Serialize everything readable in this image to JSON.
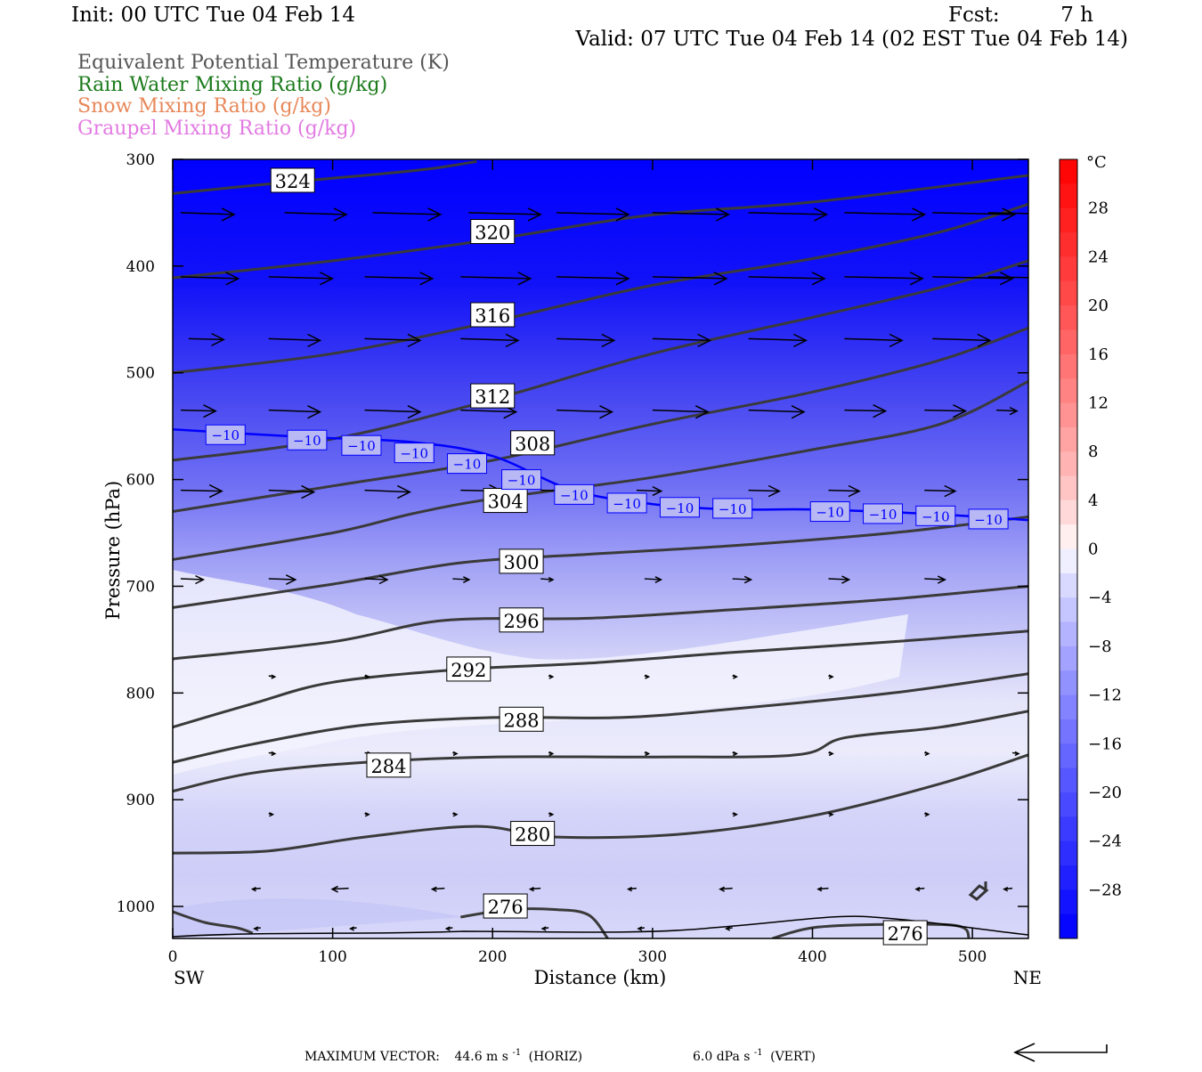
{
  "header": {
    "init": "Init: 00 UTC Tue 04 Feb 14",
    "fcst_label": "Fcst:",
    "fcst_value": "7 h",
    "valid": "Valid: 07 UTC Tue 04 Feb 14 (02 EST Tue 04 Feb 14)"
  },
  "fields": [
    {
      "label": "Equivalent Potential Temperature (K)",
      "color": "#555555"
    },
    {
      "label": "Rain Water Mixing Ratio (g/kg)",
      "color": "#1a7a1a"
    },
    {
      "label": "Snow Mixing Ratio (g/kg)",
      "color": "#e8885a"
    },
    {
      "label": "Graupel Mixing Ratio (g/kg)",
      "color": "#e27ae2"
    }
  ],
  "chart_data": {
    "type": "contour",
    "xlabel": "Distance (km)",
    "ylabel": "Pressure (hPa)",
    "xlim": [
      0,
      535
    ],
    "ylim": [
      1030,
      300
    ],
    "y_scale": "linear, inverted",
    "x_ticks": [
      "0",
      "100",
      "200",
      "300",
      "400",
      "500"
    ],
    "y_ticks": [
      "300",
      "400",
      "500",
      "600",
      "700",
      "800",
      "900",
      "1000"
    ],
    "x_left_label": "SW",
    "x_right_label": "NE",
    "theta_e_contours": [
      {
        "level": "324",
        "points": [
          [
            0,
            332
          ],
          [
            60,
            323
          ],
          [
            120,
            315
          ],
          [
            160,
            309
          ],
          [
            190,
            302
          ]
        ],
        "label_at": [
          75,
          320
        ]
      },
      {
        "level": "320",
        "points": [
          [
            0,
            411
          ],
          [
            100,
            395
          ],
          [
            200,
            375
          ],
          [
            300,
            352
          ],
          [
            400,
            340
          ],
          [
            535,
            315
          ]
        ],
        "label_at": [
          200,
          368
        ]
      },
      {
        "level": "316",
        "points": [
          [
            0,
            500
          ],
          [
            100,
            482
          ],
          [
            200,
            452
          ],
          [
            300,
            418
          ],
          [
            400,
            393
          ],
          [
            480,
            368
          ],
          [
            535,
            342
          ]
        ],
        "label_at": [
          200,
          446
        ]
      },
      {
        "level": "312",
        "points": [
          [
            0,
            582
          ],
          [
            100,
            562
          ],
          [
            200,
            525
          ],
          [
            300,
            482
          ],
          [
            400,
            448
          ],
          [
            480,
            420
          ],
          [
            535,
            395
          ]
        ],
        "label_at": [
          200,
          522
        ]
      },
      {
        "level": "308",
        "points": [
          [
            0,
            630
          ],
          [
            100,
            606
          ],
          [
            200,
            582
          ],
          [
            300,
            548
          ],
          [
            400,
            518
          ],
          [
            480,
            488
          ],
          [
            535,
            458
          ]
        ],
        "label_at": [
          225,
          566
        ]
      },
      {
        "level": "304",
        "points": [
          [
            0,
            675
          ],
          [
            100,
            650
          ],
          [
            150,
            632
          ],
          [
            200,
            618
          ],
          [
            300,
            598
          ],
          [
            400,
            572
          ],
          [
            480,
            548
          ],
          [
            535,
            508
          ]
        ],
        "label_at": [
          208,
          620
        ]
      },
      {
        "level": "300",
        "points": [
          [
            0,
            720
          ],
          [
            100,
            698
          ],
          [
            180,
            678
          ],
          [
            260,
            670
          ],
          [
            350,
            662
          ],
          [
            450,
            650
          ],
          [
            535,
            635
          ]
        ],
        "label_at": [
          218,
          677
        ]
      },
      {
        "level": "296",
        "points": [
          [
            0,
            768
          ],
          [
            100,
            752
          ],
          [
            170,
            732
          ],
          [
            260,
            730
          ],
          [
            350,
            722
          ],
          [
            450,
            712
          ],
          [
            535,
            700
          ]
        ],
        "label_at": [
          218,
          732
        ]
      },
      {
        "level": "292",
        "points": [
          [
            0,
            832
          ],
          [
            50,
            810
          ],
          [
            100,
            790
          ],
          [
            180,
            778
          ],
          [
            260,
            772
          ],
          [
            350,
            762
          ],
          [
            450,
            752
          ],
          [
            535,
            742
          ]
        ],
        "label_at": [
          185,
          778
        ]
      },
      {
        "level": "288",
        "points": [
          [
            0,
            865
          ],
          [
            50,
            848
          ],
          [
            120,
            830
          ],
          [
            200,
            823
          ],
          [
            280,
            823
          ],
          [
            350,
            815
          ],
          [
            450,
            800
          ],
          [
            535,
            782
          ]
        ],
        "label_at": [
          218,
          825
        ]
      },
      {
        "level": "284",
        "points": [
          [
            0,
            892
          ],
          [
            50,
            875
          ],
          [
            120,
            865
          ],
          [
            200,
            860
          ],
          [
            300,
            860
          ],
          [
            390,
            858
          ],
          [
            420,
            842
          ],
          [
            480,
            832
          ],
          [
            535,
            817
          ]
        ],
        "label_at": [
          135,
          868
        ]
      },
      {
        "level": "280",
        "points": [
          [
            0,
            950
          ],
          [
            60,
            948
          ],
          [
            120,
            935
          ],
          [
            190,
            925
          ],
          [
            240,
            935
          ],
          [
            320,
            932
          ],
          [
            400,
            915
          ],
          [
            480,
            885
          ],
          [
            535,
            858
          ]
        ],
        "label_at": [
          225,
          932
        ]
      },
      {
        "level": "276",
        "points": [
          [
            180,
            1010
          ],
          [
            210,
            1003
          ],
          [
            240,
            1003
          ],
          [
            260,
            1008
          ],
          [
            272,
            1030
          ]
        ],
        "label_at": [
          208,
          1000
        ]
      },
      {
        "level": "276",
        "points": [
          [
            375,
            1030
          ],
          [
            400,
            1020
          ],
          [
            440,
            1017
          ],
          [
            490,
            1018
          ],
          [
            498,
            1030
          ]
        ],
        "label_at": [
          458,
          1025
        ]
      },
      {
        "level": "",
        "points": [
          [
            0,
            1005
          ],
          [
            20,
            1015
          ],
          [
            40,
            1020
          ],
          [
            50,
            1025
          ]
        ],
        "label_at": null
      }
    ],
    "temperature_contour": {
      "level": "-10",
      "color": "#0000ff",
      "points": [
        [
          0,
          553
        ],
        [
          80,
          560
        ],
        [
          150,
          565
        ],
        [
          200,
          578
        ],
        [
          250,
          610
        ],
        [
          300,
          623
        ],
        [
          350,
          628
        ],
        [
          400,
          628
        ],
        [
          470,
          632
        ],
        [
          535,
          638
        ]
      ],
      "labels": [
        [
          33,
          558
        ],
        [
          84,
          563
        ],
        [
          118,
          568
        ],
        [
          151,
          575
        ],
        [
          184,
          585
        ],
        [
          218,
          600
        ],
        [
          251,
          614
        ],
        [
          284,
          622
        ],
        [
          317,
          626
        ],
        [
          350,
          627
        ],
        [
          411,
          630
        ],
        [
          444,
          632
        ],
        [
          477,
          634
        ],
        [
          510,
          637
        ]
      ]
    },
    "wind_vectors": [
      {
        "x": 5,
        "p": 350,
        "u": 26,
        "w": 0
      },
      {
        "x": 70,
        "p": 350,
        "u": 30,
        "w": 0
      },
      {
        "x": 125,
        "p": 350,
        "u": 33,
        "w": 0
      },
      {
        "x": 185,
        "p": 350,
        "u": 35,
        "w": 0
      },
      {
        "x": 240,
        "p": 350,
        "u": 35,
        "w": 0
      },
      {
        "x": 300,
        "p": 350,
        "u": 37,
        "w": 0
      },
      {
        "x": 360,
        "p": 350,
        "u": 38,
        "w": 0
      },
      {
        "x": 420,
        "p": 350,
        "u": 39,
        "w": 0
      },
      {
        "x": 475,
        "p": 350,
        "u": 40,
        "w": 0
      },
      {
        "x": 510,
        "p": 350,
        "u": 40,
        "w": 0
      },
      {
        "x": 5,
        "p": 410,
        "u": 28,
        "w": 0
      },
      {
        "x": 60,
        "p": 410,
        "u": 31,
        "w": 0
      },
      {
        "x": 120,
        "p": 410,
        "u": 33,
        "w": 0
      },
      {
        "x": 180,
        "p": 410,
        "u": 34,
        "w": 0
      },
      {
        "x": 240,
        "p": 410,
        "u": 35,
        "w": 0
      },
      {
        "x": 300,
        "p": 410,
        "u": 36,
        "w": 0
      },
      {
        "x": 360,
        "p": 410,
        "u": 37,
        "w": 0
      },
      {
        "x": 420,
        "p": 410,
        "u": 38,
        "w": 0
      },
      {
        "x": 475,
        "p": 410,
        "u": 39,
        "w": 0
      },
      {
        "x": 510,
        "p": 410,
        "u": 40,
        "w": 0
      },
      {
        "x": 10,
        "p": 468,
        "u": 17,
        "w": 0
      },
      {
        "x": 60,
        "p": 468,
        "u": 25,
        "w": 0
      },
      {
        "x": 120,
        "p": 468,
        "u": 27,
        "w": 0
      },
      {
        "x": 180,
        "p": 468,
        "u": 28,
        "w": 0
      },
      {
        "x": 240,
        "p": 468,
        "u": 28,
        "w": 0
      },
      {
        "x": 300,
        "p": 468,
        "u": 28,
        "w": 0
      },
      {
        "x": 360,
        "p": 468,
        "u": 28,
        "w": 0
      },
      {
        "x": 420,
        "p": 468,
        "u": 28,
        "w": 0
      },
      {
        "x": 475,
        "p": 468,
        "u": 28,
        "w": 0
      },
      {
        "x": 5,
        "p": 535,
        "u": 17,
        "w": 0
      },
      {
        "x": 60,
        "p": 535,
        "u": 25,
        "w": 0
      },
      {
        "x": 120,
        "p": 535,
        "u": 27,
        "w": 0
      },
      {
        "x": 180,
        "p": 535,
        "u": 27,
        "w": 0
      },
      {
        "x": 240,
        "p": 535,
        "u": 27,
        "w": 0
      },
      {
        "x": 300,
        "p": 535,
        "u": 27,
        "w": 0
      },
      {
        "x": 360,
        "p": 535,
        "u": 27,
        "w": 0
      },
      {
        "x": 420,
        "p": 535,
        "u": 20,
        "w": 0
      },
      {
        "x": 470,
        "p": 535,
        "u": 20,
        "w": 0
      },
      {
        "x": 515,
        "p": 535,
        "u": 10,
        "w": 0
      },
      {
        "x": 5,
        "p": 610,
        "u": 20,
        "w": 0
      },
      {
        "x": 60,
        "p": 610,
        "u": 22,
        "w": 0
      },
      {
        "x": 120,
        "p": 610,
        "u": 22,
        "w": 0
      },
      {
        "x": 180,
        "p": 610,
        "u": 20,
        "w": 0
      },
      {
        "x": 230,
        "p": 610,
        "u": 15,
        "w": 0
      },
      {
        "x": 290,
        "p": 610,
        "u": 12,
        "w": 0
      },
      {
        "x": 360,
        "p": 610,
        "u": 15,
        "w": 0
      },
      {
        "x": 410,
        "p": 610,
        "u": 15,
        "w": 0
      },
      {
        "x": 470,
        "p": 610,
        "u": 15,
        "w": 0
      },
      {
        "x": 5,
        "p": 693,
        "u": 11,
        "w": 0
      },
      {
        "x": 60,
        "p": 693,
        "u": 13,
        "w": 0
      },
      {
        "x": 120,
        "p": 693,
        "u": 11,
        "w": 0
      },
      {
        "x": 175,
        "p": 693,
        "u": 8,
        "w": 0
      },
      {
        "x": 230,
        "p": 693,
        "u": 6,
        "w": 0
      },
      {
        "x": 295,
        "p": 693,
        "u": 8,
        "w": 0
      },
      {
        "x": 350,
        "p": 693,
        "u": 9,
        "w": 0
      },
      {
        "x": 410,
        "p": 693,
        "u": 10,
        "w": 0
      },
      {
        "x": 470,
        "p": 693,
        "u": 10,
        "w": 0
      },
      {
        "x": 60,
        "p": 784,
        "u": 3,
        "w": 0
      },
      {
        "x": 120,
        "p": 784,
        "u": 2,
        "w": 0
      },
      {
        "x": 175,
        "p": 784,
        "u": 3,
        "w": 0
      },
      {
        "x": 235,
        "p": 784,
        "u": 2,
        "w": 0
      },
      {
        "x": 295,
        "p": 784,
        "u": 2,
        "w": 0
      },
      {
        "x": 350,
        "p": 784,
        "u": 2,
        "w": 0
      },
      {
        "x": 410,
        "p": 784,
        "u": 2,
        "w": 0
      },
      {
        "x": 60,
        "p": 856,
        "u": 3,
        "w": 0
      },
      {
        "x": 120,
        "p": 856,
        "u": 3,
        "w": 0
      },
      {
        "x": 175,
        "p": 856,
        "u": 2,
        "w": 0
      },
      {
        "x": 235,
        "p": 856,
        "u": 2,
        "w": 0
      },
      {
        "x": 295,
        "p": 856,
        "u": 2,
        "w": 0
      },
      {
        "x": 350,
        "p": 856,
        "u": 2,
        "w": 0
      },
      {
        "x": 410,
        "p": 856,
        "u": 2,
        "w": 0
      },
      {
        "x": 470,
        "p": 856,
        "u": 2,
        "w": 0
      },
      {
        "x": 525,
        "p": 856,
        "u": 3,
        "w": 0
      },
      {
        "x": 60,
        "p": 913,
        "u": 2,
        "w": 0
      },
      {
        "x": 120,
        "p": 913,
        "u": 2,
        "w": 0
      },
      {
        "x": 175,
        "p": 913,
        "u": 2,
        "w": 0
      },
      {
        "x": 235,
        "p": 913,
        "u": 2,
        "w": 0
      },
      {
        "x": 350,
        "p": 913,
        "u": 2,
        "w": 0
      },
      {
        "x": 410,
        "p": 913,
        "u": 2,
        "w": 0
      },
      {
        "x": 470,
        "p": 913,
        "u": 2,
        "w": 0
      },
      {
        "x": 55,
        "p": 983,
        "u": -4,
        "w": 0
      },
      {
        "x": 110,
        "p": 983,
        "u": -8,
        "w": 0
      },
      {
        "x": 170,
        "p": 983,
        "u": -6,
        "w": 0
      },
      {
        "x": 230,
        "p": 983,
        "u": -5,
        "w": 0
      },
      {
        "x": 290,
        "p": 983,
        "u": -4,
        "w": 0
      },
      {
        "x": 350,
        "p": 983,
        "u": -6,
        "w": 0
      },
      {
        "x": 410,
        "p": 983,
        "u": -5,
        "w": 0
      },
      {
        "x": 470,
        "p": 983,
        "u": -4,
        "w": 0
      },
      {
        "x": 525,
        "p": 983,
        "u": -4,
        "w": 0
      },
      {
        "x": 55,
        "p": 1020,
        "u": -3,
        "w": 0
      },
      {
        "x": 115,
        "p": 1020,
        "u": -3,
        "w": 0
      },
      {
        "x": 175,
        "p": 1020,
        "u": -3,
        "w": 0
      },
      {
        "x": 235,
        "p": 1020,
        "u": -3,
        "w": 0
      },
      {
        "x": 295,
        "p": 1020,
        "u": -3,
        "w": 0
      },
      {
        "x": 350,
        "p": 1020,
        "u": -3,
        "w": 0
      },
      {
        "x": 470,
        "p": 1020,
        "u": -3,
        "w": 0
      }
    ],
    "colorbar": {
      "unit": "°C",
      "tick_labels": [
        "28",
        "24",
        "20",
        "16",
        "12",
        "8",
        "4",
        "0",
        "−4",
        "−8",
        "−12",
        "−16",
        "−20",
        "−24",
        "−28"
      ],
      "tick_values": [
        28,
        24,
        20,
        16,
        12,
        8,
        4,
        0,
        -4,
        -8,
        -12,
        -16,
        -20,
        -24,
        -28
      ],
      "min": -32,
      "max": 32,
      "step": 2,
      "cold_color": "#0000ff",
      "warm_color": "#ff0000",
      "neutral_color": "#ffffff"
    }
  },
  "footer": {
    "max_vector_label": "MAXIMUM VECTOR:",
    "horiz_value": "44.6 m s",
    "horiz_exp": "-1",
    "horiz_tag": "(HORIZ)",
    "vert_value": "6.0 dPa s",
    "vert_exp": "-1",
    "vert_tag": "(VERT)"
  }
}
